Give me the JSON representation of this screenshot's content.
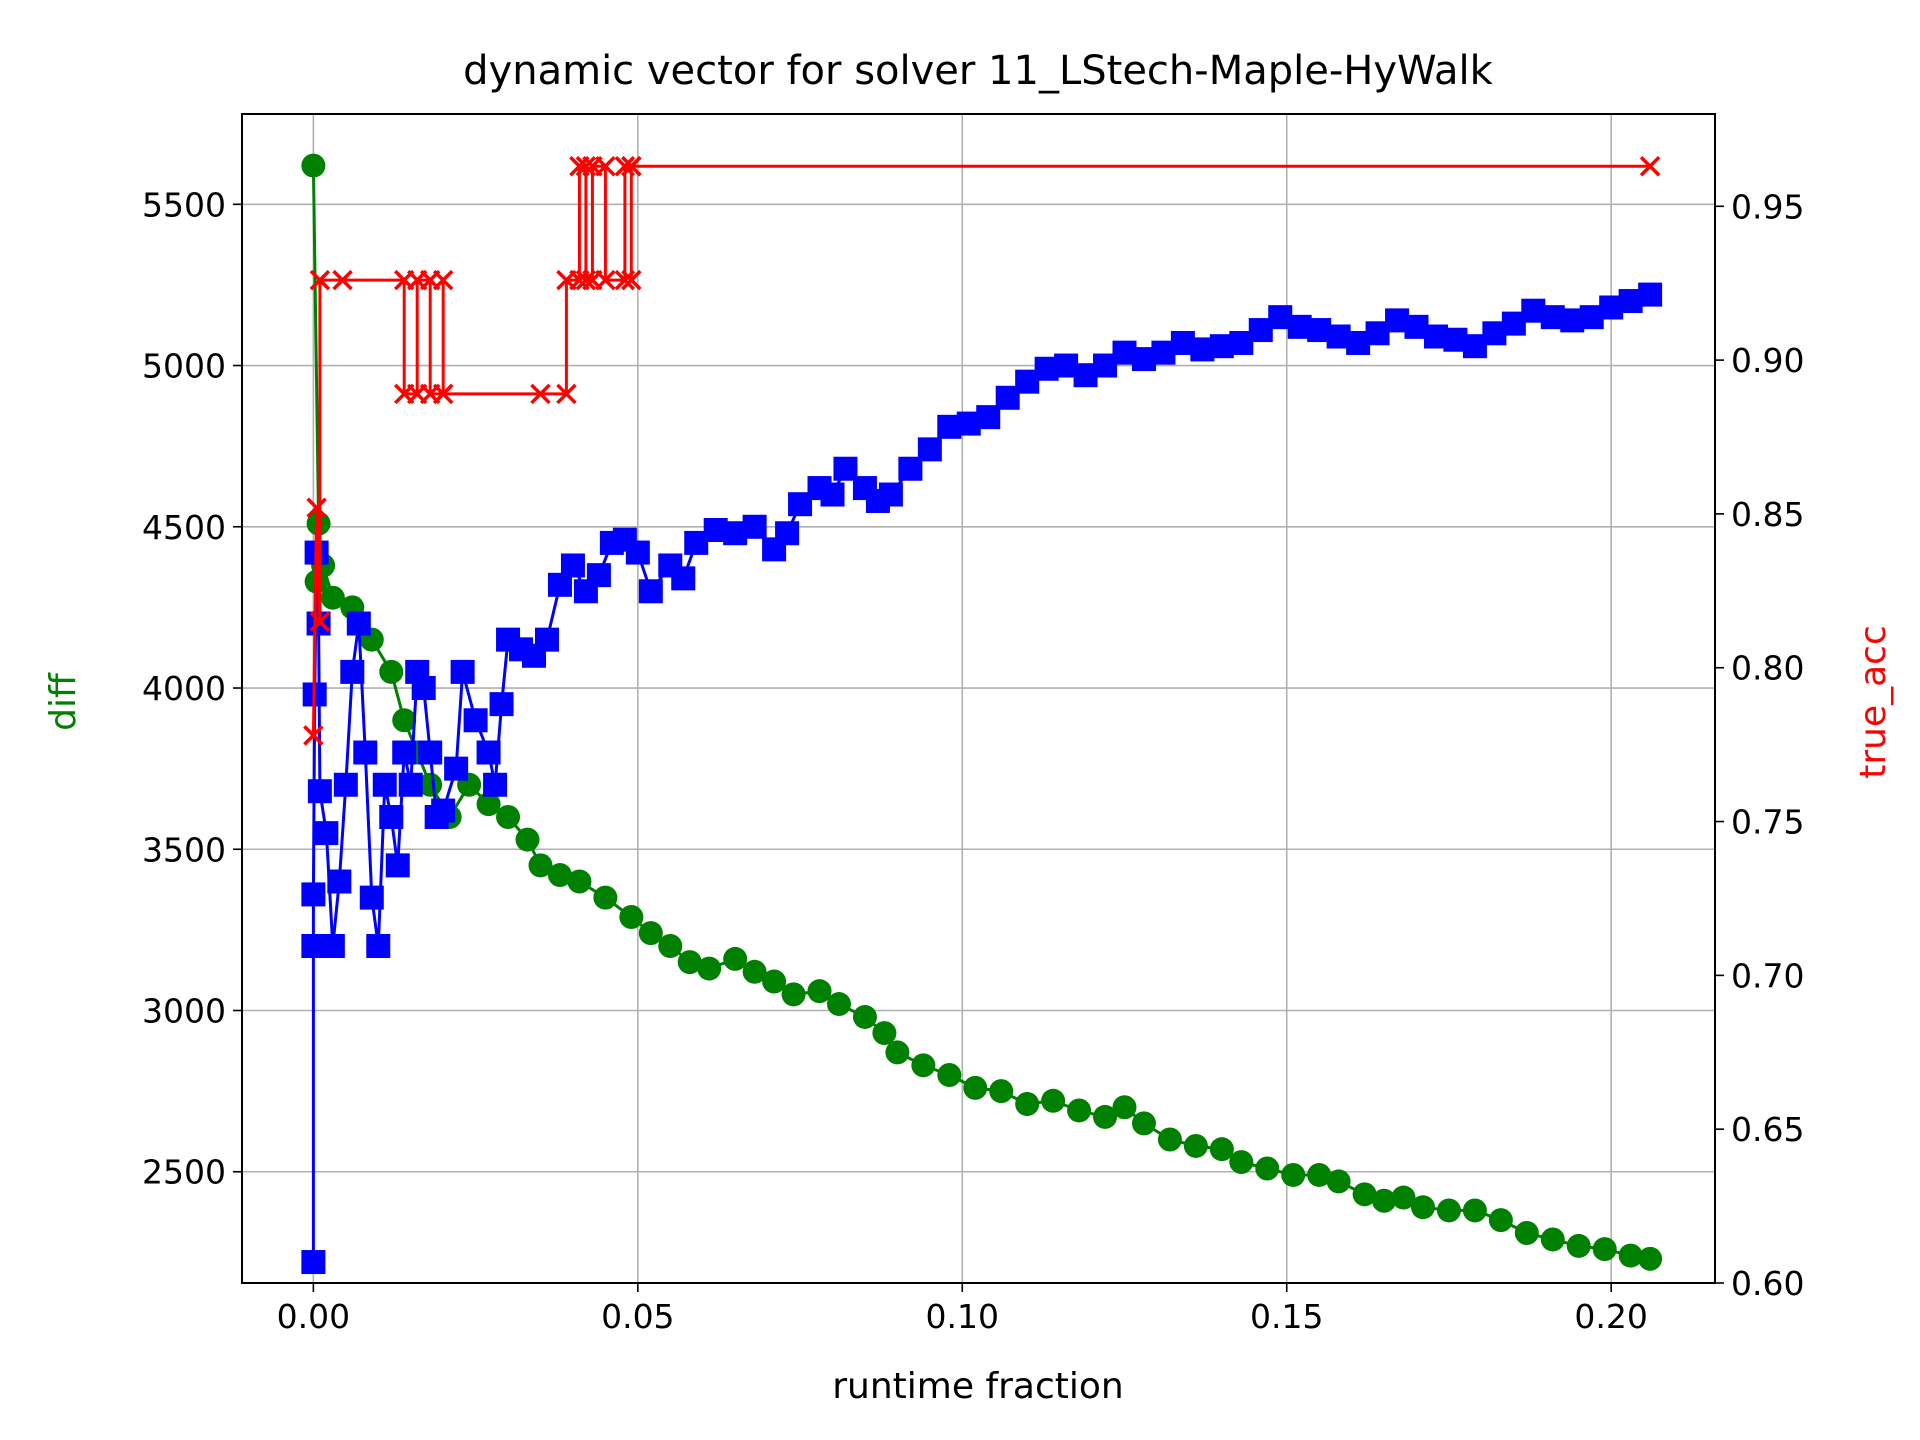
{
  "chart_data": {
    "type": "line",
    "title": "dynamic vector for solver 11_LStech-Maple-HyWalk",
    "xlabel": "runtime fraction",
    "ylabel_left": "diff",
    "ylabel_right": "true_acc",
    "xlim": [
      -0.011,
      0.216
    ],
    "ylim_left": [
      2155,
      5780
    ],
    "ylim_right": [
      0.6,
      0.98
    ],
    "grid": true,
    "x_ticks": [
      0.0,
      0.05,
      0.1,
      0.15,
      0.2
    ],
    "x_tick_labels": [
      "0.00",
      "0.05",
      "0.10",
      "0.15",
      "0.20"
    ],
    "y_left_ticks": [
      2500,
      3000,
      3500,
      4000,
      4500,
      5000,
      5500
    ],
    "y_left_tick_labels": [
      "2500",
      "3000",
      "3500",
      "4000",
      "4500",
      "5000",
      "5500"
    ],
    "y_right_ticks": [
      0.6,
      0.65,
      0.7,
      0.75,
      0.8,
      0.85,
      0.9,
      0.95
    ],
    "y_right_tick_labels": [
      "0.60",
      "0.65",
      "0.70",
      "0.75",
      "0.80",
      "0.85",
      "0.90",
      "0.95"
    ],
    "series": [
      {
        "axis": "left",
        "color": "#008000",
        "marker": "circle",
        "points": [
          [
            0.0,
            5620
          ],
          [
            0.0008,
            4510
          ],
          [
            0.0005,
            4330
          ],
          [
            0.0015,
            4380
          ],
          [
            0.003,
            4280
          ],
          [
            0.006,
            4250
          ],
          [
            0.009,
            4150
          ],
          [
            0.012,
            4050
          ],
          [
            0.014,
            3900
          ],
          [
            0.016,
            3800
          ],
          [
            0.018,
            3700
          ],
          [
            0.021,
            3600
          ],
          [
            0.024,
            3700
          ],
          [
            0.027,
            3640
          ],
          [
            0.03,
            3600
          ],
          [
            0.033,
            3530
          ],
          [
            0.035,
            3450
          ],
          [
            0.038,
            3420
          ],
          [
            0.041,
            3400
          ],
          [
            0.045,
            3350
          ],
          [
            0.049,
            3290
          ],
          [
            0.052,
            3240
          ],
          [
            0.055,
            3200
          ],
          [
            0.058,
            3150
          ],
          [
            0.061,
            3130
          ],
          [
            0.065,
            3160
          ],
          [
            0.068,
            3120
          ],
          [
            0.071,
            3090
          ],
          [
            0.074,
            3050
          ],
          [
            0.078,
            3060
          ],
          [
            0.081,
            3020
          ],
          [
            0.085,
            2980
          ],
          [
            0.088,
            2930
          ],
          [
            0.09,
            2870
          ],
          [
            0.094,
            2830
          ],
          [
            0.098,
            2800
          ],
          [
            0.102,
            2760
          ],
          [
            0.106,
            2750
          ],
          [
            0.11,
            2710
          ],
          [
            0.114,
            2720
          ],
          [
            0.118,
            2690
          ],
          [
            0.122,
            2670
          ],
          [
            0.125,
            2700
          ],
          [
            0.128,
            2650
          ],
          [
            0.132,
            2600
          ],
          [
            0.136,
            2580
          ],
          [
            0.14,
            2570
          ],
          [
            0.143,
            2530
          ],
          [
            0.147,
            2510
          ],
          [
            0.151,
            2490
          ],
          [
            0.155,
            2490
          ],
          [
            0.158,
            2470
          ],
          [
            0.162,
            2430
          ],
          [
            0.165,
            2410
          ],
          [
            0.168,
            2420
          ],
          [
            0.171,
            2390
          ],
          [
            0.175,
            2380
          ],
          [
            0.179,
            2380
          ],
          [
            0.183,
            2350
          ],
          [
            0.187,
            2310
          ],
          [
            0.191,
            2290
          ],
          [
            0.195,
            2270
          ],
          [
            0.199,
            2260
          ],
          [
            0.203,
            2240
          ],
          [
            0.206,
            2230
          ]
        ]
      },
      {
        "axis": "left",
        "color": "#0000ff",
        "marker": "square",
        "points": [
          [
            0.0,
            2220
          ],
          [
            0.0,
            3200
          ],
          [
            0.0,
            3360
          ],
          [
            0.0002,
            3980
          ],
          [
            0.0005,
            4420
          ],
          [
            0.0008,
            4200
          ],
          [
            0.001,
            3680
          ],
          [
            0.002,
            3550
          ],
          [
            0.003,
            3200
          ],
          [
            0.004,
            3400
          ],
          [
            0.005,
            3700
          ],
          [
            0.006,
            4050
          ],
          [
            0.007,
            4200
          ],
          [
            0.008,
            3800
          ],
          [
            0.009,
            3350
          ],
          [
            0.01,
            3200
          ],
          [
            0.011,
            3700
          ],
          [
            0.012,
            3600
          ],
          [
            0.013,
            3450
          ],
          [
            0.014,
            3800
          ],
          [
            0.015,
            3700
          ],
          [
            0.016,
            4050
          ],
          [
            0.017,
            4000
          ],
          [
            0.018,
            3800
          ],
          [
            0.019,
            3600
          ],
          [
            0.02,
            3620
          ],
          [
            0.022,
            3750
          ],
          [
            0.023,
            4050
          ],
          [
            0.025,
            3900
          ],
          [
            0.027,
            3800
          ],
          [
            0.028,
            3700
          ],
          [
            0.029,
            3950
          ],
          [
            0.03,
            4150
          ],
          [
            0.032,
            4120
          ],
          [
            0.034,
            4100
          ],
          [
            0.036,
            4150
          ],
          [
            0.038,
            4320
          ],
          [
            0.04,
            4380
          ],
          [
            0.042,
            4300
          ],
          [
            0.044,
            4350
          ],
          [
            0.046,
            4450
          ],
          [
            0.048,
            4460
          ],
          [
            0.05,
            4420
          ],
          [
            0.052,
            4300
          ],
          [
            0.055,
            4380
          ],
          [
            0.057,
            4340
          ],
          [
            0.059,
            4450
          ],
          [
            0.062,
            4490
          ],
          [
            0.065,
            4480
          ],
          [
            0.068,
            4500
          ],
          [
            0.071,
            4430
          ],
          [
            0.073,
            4480
          ],
          [
            0.075,
            4570
          ],
          [
            0.078,
            4620
          ],
          [
            0.08,
            4600
          ],
          [
            0.082,
            4680
          ],
          [
            0.085,
            4620
          ],
          [
            0.087,
            4580
          ],
          [
            0.089,
            4600
          ],
          [
            0.092,
            4680
          ],
          [
            0.095,
            4740
          ],
          [
            0.098,
            4810
          ],
          [
            0.101,
            4820
          ],
          [
            0.104,
            4840
          ],
          [
            0.107,
            4900
          ],
          [
            0.11,
            4950
          ],
          [
            0.113,
            4990
          ],
          [
            0.116,
            5000
          ],
          [
            0.119,
            4970
          ],
          [
            0.122,
            5000
          ],
          [
            0.125,
            5040
          ],
          [
            0.128,
            5020
          ],
          [
            0.131,
            5040
          ],
          [
            0.134,
            5070
          ],
          [
            0.137,
            5050
          ],
          [
            0.14,
            5060
          ],
          [
            0.143,
            5070
          ],
          [
            0.146,
            5110
          ],
          [
            0.149,
            5150
          ],
          [
            0.152,
            5120
          ],
          [
            0.155,
            5110
          ],
          [
            0.158,
            5090
          ],
          [
            0.161,
            5070
          ],
          [
            0.164,
            5100
          ],
          [
            0.167,
            5140
          ],
          [
            0.17,
            5120
          ],
          [
            0.173,
            5090
          ],
          [
            0.176,
            5080
          ],
          [
            0.179,
            5060
          ],
          [
            0.182,
            5100
          ],
          [
            0.185,
            5130
          ],
          [
            0.188,
            5170
          ],
          [
            0.191,
            5150
          ],
          [
            0.194,
            5140
          ],
          [
            0.197,
            5150
          ],
          [
            0.2,
            5180
          ],
          [
            0.203,
            5200
          ],
          [
            0.206,
            5220
          ]
        ]
      },
      {
        "axis": "right",
        "color": "#ff0000",
        "marker": "x",
        "points": [
          [
            0.0,
            0.778
          ],
          [
            0.0005,
            0.852
          ],
          [
            0.001,
            0.815
          ],
          [
            0.001,
            0.926
          ],
          [
            0.0045,
            0.926
          ],
          [
            0.014,
            0.926
          ],
          [
            0.014,
            0.889
          ],
          [
            0.016,
            0.889
          ],
          [
            0.016,
            0.926
          ],
          [
            0.018,
            0.926
          ],
          [
            0.018,
            0.889
          ],
          [
            0.02,
            0.889
          ],
          [
            0.02,
            0.926
          ],
          [
            0.02,
            0.889
          ],
          [
            0.035,
            0.889
          ],
          [
            0.039,
            0.889
          ],
          [
            0.039,
            0.926
          ],
          [
            0.041,
            0.926
          ],
          [
            0.041,
            0.963
          ],
          [
            0.042,
            0.963
          ],
          [
            0.042,
            0.926
          ],
          [
            0.043,
            0.926
          ],
          [
            0.043,
            0.963
          ],
          [
            0.045,
            0.963
          ],
          [
            0.045,
            0.926
          ],
          [
            0.048,
            0.926
          ],
          [
            0.048,
            0.963
          ],
          [
            0.049,
            0.963
          ],
          [
            0.049,
            0.926
          ],
          [
            0.049,
            0.963
          ],
          [
            0.206,
            0.963
          ]
        ]
      }
    ]
  }
}
